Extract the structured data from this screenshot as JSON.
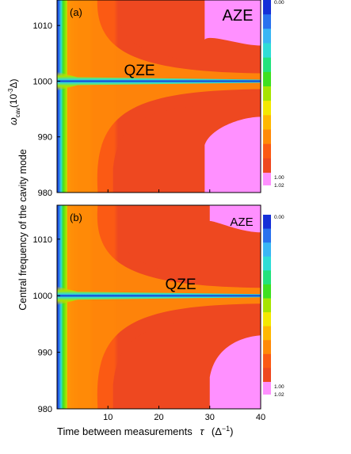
{
  "figure": {
    "ylabel_main": "Central frequency of the cavity mode",
    "xlabel": "Time between measurements",
    "xlabel_symbol": "τ",
    "xlabel_unit": "(Δ",
    "xlabel_unit_exp": "−1",
    "xlabel_unit_close": ")"
  },
  "chart_data": [
    {
      "type": "heatmap",
      "panel": "(a)",
      "ylabel_symbol": "ω",
      "ylabel_sub": "cav",
      "ylabel_unit": "(10",
      "ylabel_unit_exp": "-3",
      "ylabel_unit_close": "Δ)",
      "xlim": [
        0,
        40
      ],
      "ylim": [
        980,
        1016
      ],
      "xticks": [
        "10",
        "20",
        "30",
        "40"
      ],
      "yticks": [
        "980",
        "990",
        "1000",
        "1010"
      ],
      "annotations": [
        "AZE",
        "QZE"
      ],
      "colorbar": {
        "top_label": "0.00",
        "labels": [
          "1.00",
          "1.02"
        ],
        "colors": [
          "#1530d8",
          "#2a72ee",
          "#3ab6f4",
          "#2fdcd6",
          "#22e27c",
          "#3ee020",
          "#a6e400",
          "#f4e800",
          "#ffb800",
          "#ff8a08",
          "#fb5a14",
          "#ee4820",
          "#ff90ff"
        ]
      },
      "regions": [
        {
          "name": "dip",
          "y_center": 1000,
          "color": "#1530d8"
        },
        {
          "name": "QZE",
          "color": "#ee4820"
        },
        {
          "name": "AZE",
          "color": "#ff90ff"
        }
      ]
    },
    {
      "type": "heatmap",
      "panel": "(b)",
      "xlim": [
        0,
        40
      ],
      "ylim": [
        980,
        1016
      ],
      "xticks": [
        "10",
        "20",
        "30",
        "40"
      ],
      "yticks": [
        "980",
        "990",
        "1000",
        "1010"
      ],
      "annotations": [
        "AZE",
        "QZE"
      ],
      "colorbar": {
        "top_label": "0.00",
        "labels": [
          "1.00",
          "1.02"
        ],
        "colors": [
          "#1530d8",
          "#2a72ee",
          "#3ab6f4",
          "#2fdcd6",
          "#22e27c",
          "#3ee020",
          "#a6e400",
          "#f4e800",
          "#ffb800",
          "#ff8a08",
          "#fb5a14",
          "#ee4820",
          "#ff90ff"
        ]
      },
      "regions": [
        {
          "name": "dip",
          "y_center": 1000,
          "color": "#1530d8"
        },
        {
          "name": "QZE",
          "color": "#ee4820"
        },
        {
          "name": "AZE",
          "color": "#ff90ff"
        }
      ]
    }
  ]
}
